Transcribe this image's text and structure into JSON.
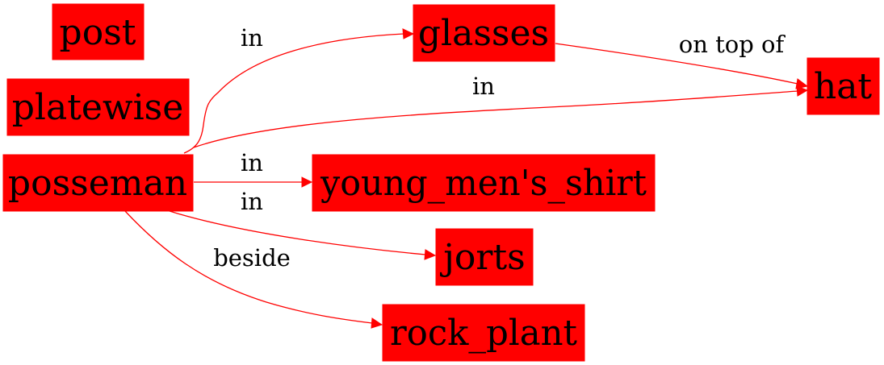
{
  "colors": {
    "node_fill": "#ff0000",
    "edge": "#ff0000",
    "text": "#000000",
    "background": "#ffffff"
  },
  "nodes": {
    "post": "post",
    "platewise": "platewise",
    "posseman": "posseman",
    "glasses": "glasses",
    "hat": "hat",
    "young_mens_shirt": "young_men's_shirt",
    "jorts": "jorts",
    "rock_plant": "rock_plant"
  },
  "edges": [
    {
      "from": "posseman",
      "to": "glasses",
      "label": "in"
    },
    {
      "from": "glasses",
      "to": "hat",
      "label": "on top of"
    },
    {
      "from": "posseman",
      "to": "hat",
      "label": "in"
    },
    {
      "from": "posseman",
      "to": "young_men's_shirt",
      "label": "in"
    },
    {
      "from": "posseman",
      "to": "jorts",
      "label": "in"
    },
    {
      "from": "posseman",
      "to": "rock_plant",
      "label": "beside"
    }
  ]
}
